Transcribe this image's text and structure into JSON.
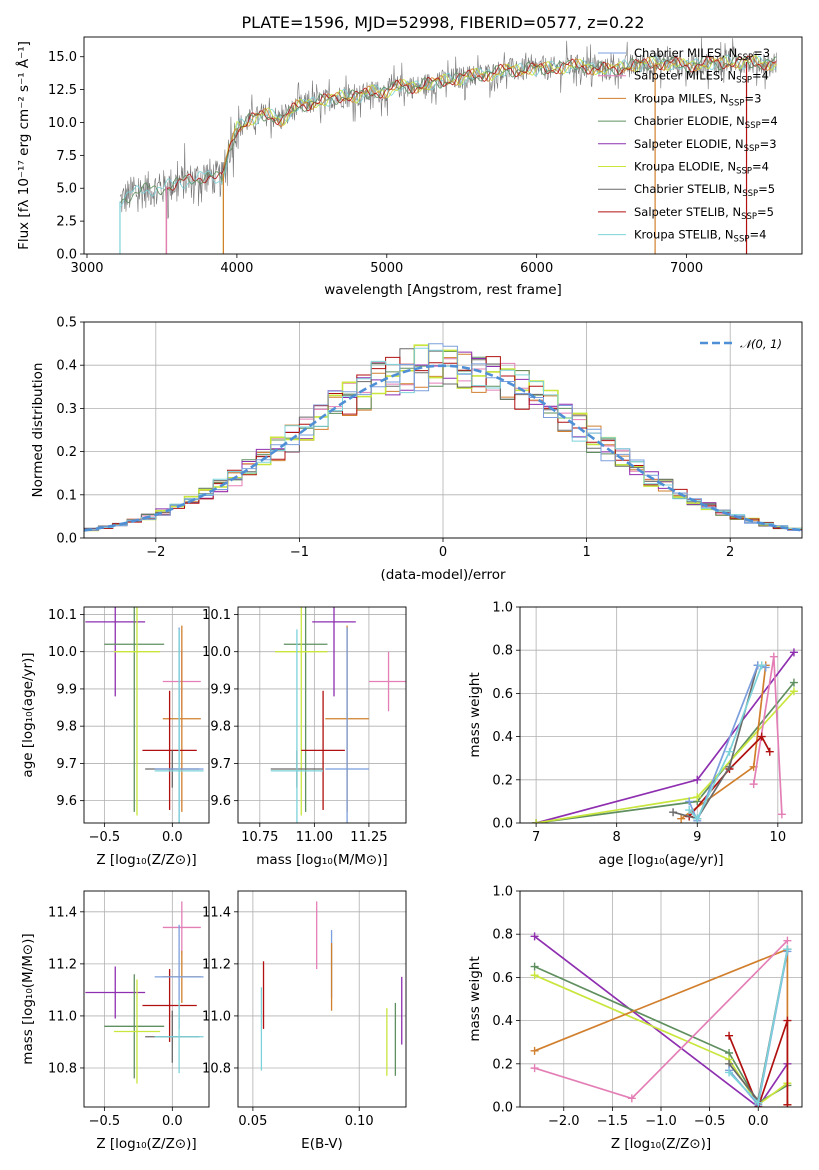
{
  "title": "PLATE=1596, MJD=52998, FIBERID=0577, z=0.22",
  "colors": {
    "chabrier_miles": "#7b9fdc",
    "salpeter_miles": "#e47fb6",
    "kroupa_miles": "#d17f2d",
    "chabrier_elodie": "#5f8f5f",
    "salpeter_elodie": "#8e2fb0",
    "kroupa_elodie": "#c8e63c",
    "chabrier_stelib": "#6a6a6a",
    "salpeter_stelib": "#b01010",
    "kroupa_stelib": "#7dd3da",
    "normal_curve": "#4f8fd6"
  },
  "chart_data": [
    {
      "type": "line",
      "xlabel": "wavelength [Angstrom, rest frame]",
      "ylabel": "Flux [fλ 10⁻¹⁷ erg cm⁻² s⁻¹ Å⁻¹]",
      "xlim": [
        2980,
        7770
      ],
      "ylim": [
        0,
        16.5
      ],
      "xticks": [
        "3000",
        "4000",
        "5000",
        "6000",
        "7000"
      ],
      "yticks": [
        "0.0",
        "2.5",
        "5.0",
        "7.5",
        "10.0",
        "12.5",
        "15.0"
      ],
      "grid": false,
      "legend_placement": "upper-right",
      "legend": [
        {
          "label": "Chabrier MILES, N",
          "sub": "SSP",
          "suffix": "=3",
          "color": "chabrier_miles"
        },
        {
          "label": "Salpeter MILES, N",
          "sub": "SSP",
          "suffix": "=4",
          "color": "salpeter_miles"
        },
        {
          "label": "Kroupa MILES, N",
          "sub": "SSP",
          "suffix": "=3",
          "color": "kroupa_miles"
        },
        {
          "label": "Chabrier ELODIE, N",
          "sub": "SSP",
          "suffix": "=4",
          "color": "chabrier_elodie"
        },
        {
          "label": "Salpeter ELODIE, N",
          "sub": "SSP",
          "suffix": "=3",
          "color": "salpeter_elodie"
        },
        {
          "label": "Kroupa ELODIE, N",
          "sub": "SSP",
          "suffix": "=4",
          "color": "kroupa_elodie"
        },
        {
          "label": "Chabrier STELIB, N",
          "sub": "SSP",
          "suffix": "=5",
          "color": "chabrier_stelib"
        },
        {
          "label": "Salpeter STELIB, N",
          "sub": "SSP",
          "suffix": "=5",
          "color": "salpeter_stelib"
        },
        {
          "label": "Kroupa STELIB, N",
          "sub": "SSP",
          "suffix": "=4",
          "color": "kroupa_stelib"
        }
      ],
      "model_starts": [
        {
          "color": "kroupa_stelib",
          "x": 3220
        },
        {
          "color": "salpeter_stelib",
          "x": 3530
        },
        {
          "color": "kroupa_elodie",
          "x": 3910
        },
        {
          "color": "kroupa_miles",
          "x": 3910
        },
        {
          "color": "salpeter_miles",
          "x": 3530
        }
      ],
      "model_ends": [
        {
          "color": "kroupa_miles",
          "x": 6790
        },
        {
          "color": "salpeter_stelib",
          "x": 7400
        }
      ],
      "continuum": [
        [
          3220,
          4.0
        ],
        [
          3300,
          4.6
        ],
        [
          3400,
          4.9
        ],
        [
          3500,
          5.0
        ],
        [
          3600,
          5.4
        ],
        [
          3700,
          5.6
        ],
        [
          3800,
          6.0
        ],
        [
          3900,
          5.6
        ],
        [
          3950,
          8.0
        ],
        [
          4000,
          9.6
        ],
        [
          4100,
          10.3
        ],
        [
          4200,
          10.6
        ],
        [
          4300,
          10.2
        ],
        [
          4400,
          11.2
        ],
        [
          4500,
          11.5
        ],
        [
          4600,
          11.7
        ],
        [
          4700,
          12.0
        ],
        [
          4800,
          12.0
        ],
        [
          4900,
          12.3
        ],
        [
          5000,
          12.4
        ],
        [
          5100,
          12.8
        ],
        [
          5200,
          12.7
        ],
        [
          5300,
          13.0
        ],
        [
          5400,
          13.2
        ],
        [
          5500,
          13.4
        ],
        [
          5600,
          13.6
        ],
        [
          5700,
          13.7
        ],
        [
          5800,
          14.0
        ],
        [
          5900,
          14.0
        ],
        [
          6000,
          14.1
        ],
        [
          6100,
          14.1
        ],
        [
          6200,
          14.3
        ],
        [
          6300,
          14.3
        ],
        [
          6400,
          14.1
        ],
        [
          6500,
          14.0
        ],
        [
          6600,
          14.3
        ],
        [
          6700,
          14.4
        ],
        [
          6800,
          14.5
        ],
        [
          6900,
          14.5
        ],
        [
          7000,
          14.3
        ],
        [
          7100,
          14.5
        ],
        [
          7200,
          14.5
        ],
        [
          7300,
          14.6
        ],
        [
          7400,
          14.6
        ],
        [
          7500,
          14.5
        ],
        [
          7600,
          14.5
        ]
      ]
    },
    {
      "type": "histogram",
      "xlabel": "(data-model)/error",
      "ylabel": "Normed distribution",
      "xlim": [
        -2.5,
        2.5
      ],
      "ylim": [
        0,
        0.5
      ],
      "xticks": [
        "−2",
        "−1",
        "0",
        "1",
        "2"
      ],
      "yticks": [
        "0.0",
        "0.1",
        "0.2",
        "0.3",
        "0.4",
        "0.5"
      ],
      "grid": true,
      "legend_placement": "upper-right",
      "legend_label": "𝒩(0, 1)",
      "bin_width": 0.1,
      "bin_start": -2.5,
      "normal_curve": {
        "mean": 0,
        "sigma": 1
      }
    },
    {
      "type": "scatter-errorbar",
      "xlabel": "Z [log₁₀(Z/Z⊙)]",
      "ylabel": "age  [log₁₀(age/yr)]",
      "xlim": [
        -0.65,
        0.27
      ],
      "ylim": [
        9.54,
        10.12
      ],
      "xticks": [
        "−0.5",
        "0.0"
      ],
      "yticks": [
        "9.6",
        "9.7",
        "9.8",
        "9.9",
        "10.0",
        "10.1"
      ],
      "grid": true,
      "points": [
        {
          "color": "salpeter_elodie",
          "x": -0.42,
          "xerr": 0.22,
          "y": 10.08,
          "yerr": 0.2
        },
        {
          "color": "chabrier_elodie",
          "x": -0.28,
          "xerr": 0.22,
          "y": 10.02,
          "yerr": 0.45
        },
        {
          "color": "kroupa_elodie",
          "x": -0.26,
          "xerr": 0.17,
          "y": 10.0,
          "yerr": 0.44
        },
        {
          "color": "salpeter_miles",
          "x": 0.07,
          "xerr": 0.14,
          "y": 9.92,
          "yerr": 0.08
        },
        {
          "color": "kroupa_miles",
          "x": 0.07,
          "xerr": 0.14,
          "y": 9.82,
          "yerr": 0.25
        },
        {
          "color": "salpeter_stelib",
          "x": -0.02,
          "xerr": 0.2,
          "y": 9.735,
          "yerr": 0.16
        },
        {
          "color": "chabrier_stelib",
          "x": 0.0,
          "xerr": 0.2,
          "y": 9.685,
          "yerr": 0.05
        },
        {
          "color": "chabrier_miles",
          "x": 0.05,
          "xerr": 0.18,
          "y": 9.685,
          "yerr": 0.38
        },
        {
          "color": "kroupa_stelib",
          "x": 0.05,
          "xerr": 0.18,
          "y": 9.68,
          "yerr": 0.38
        }
      ]
    },
    {
      "type": "scatter-errorbar",
      "xlabel": "mass [log₁₀(M/M⊙)]",
      "ylabel": "",
      "xlim": [
        10.65,
        11.42
      ],
      "ylim": [
        9.54,
        10.12
      ],
      "xticks": [
        "10.75",
        "11.00",
        "11.25"
      ],
      "yticks": [
        "9.6",
        "9.7",
        "9.8",
        "9.9",
        "10.0",
        "10.1"
      ],
      "grid": true,
      "points": [
        {
          "color": "salpeter_elodie",
          "x": 11.09,
          "xerr": 0.1,
          "y": 10.08,
          "yerr": 0.2
        },
        {
          "color": "chabrier_elodie",
          "x": 10.96,
          "xerr": 0.1,
          "y": 10.02,
          "yerr": 0.45
        },
        {
          "color": "kroupa_elodie",
          "x": 10.94,
          "xerr": 0.12,
          "y": 10.0,
          "yerr": 0.44
        },
        {
          "color": "salpeter_miles",
          "x": 11.34,
          "xerr": 0.09,
          "y": 9.92,
          "yerr": 0.08
        },
        {
          "color": "kroupa_miles",
          "x": 11.15,
          "xerr": 0.1,
          "y": 9.82,
          "yerr": 0.25
        },
        {
          "color": "salpeter_stelib",
          "x": 11.04,
          "xerr": 0.1,
          "y": 9.735,
          "yerr": 0.16
        },
        {
          "color": "chabrier_stelib",
          "x": 10.92,
          "xerr": 0.12,
          "y": 9.685,
          "yerr": 0.05
        },
        {
          "color": "chabrier_miles",
          "x": 11.15,
          "xerr": 0.1,
          "y": 9.685,
          "yerr": 0.38
        },
        {
          "color": "kroupa_stelib",
          "x": 10.92,
          "xerr": 0.12,
          "y": 9.68,
          "yerr": 0.38
        }
      ]
    },
    {
      "type": "line",
      "xlabel": "age  [log₁₀(age/yr)]",
      "ylabel": "mass weight",
      "xlim": [
        6.8,
        10.3
      ],
      "ylim": [
        0,
        1.0
      ],
      "xticks": [
        "7",
        "8",
        "9",
        "10"
      ],
      "yticks": [
        "0.0",
        "0.2",
        "0.4",
        "0.6",
        "0.8",
        "1.0"
      ],
      "grid": true,
      "series": [
        {
          "color": "salpeter_elodie",
          "points": [
            [
              7.0,
              0.0
            ],
            [
              9.0,
              0.2
            ],
            [
              10.2,
              0.79
            ]
          ]
        },
        {
          "color": "chabrier_elodie",
          "points": [
            [
              7.0,
              0.0
            ],
            [
              9.0,
              0.1
            ],
            [
              10.2,
              0.65
            ]
          ]
        },
        {
          "color": "kroupa_elodie",
          "points": [
            [
              7.0,
              0.0
            ],
            [
              9.0,
              0.12
            ],
            [
              10.2,
              0.61
            ]
          ]
        },
        {
          "color": "kroupa_miles",
          "points": [
            [
              8.8,
              0.02
            ],
            [
              9.7,
              0.26
            ],
            [
              9.85,
              0.73
            ]
          ]
        },
        {
          "color": "salpeter_miles",
          "points": [
            [
              9.7,
              0.18
            ],
            [
              9.95,
              0.77
            ],
            [
              10.05,
              0.04
            ]
          ]
        },
        {
          "color": "salpeter_stelib",
          "points": [
            [
              8.9,
              0.03
            ],
            [
              9.4,
              0.25
            ],
            [
              9.8,
              0.4
            ],
            [
              9.9,
              0.33
            ]
          ]
        },
        {
          "color": "chabrier_stelib",
          "points": [
            [
              8.7,
              0.05
            ],
            [
              9.0,
              0.02
            ],
            [
              9.4,
              0.26
            ],
            [
              9.75,
              0.73
            ]
          ]
        },
        {
          "color": "chabrier_miles",
          "points": [
            [
              8.9,
              0.1
            ],
            [
              9.0,
              0.01
            ],
            [
              9.75,
              0.73
            ],
            [
              9.85,
              0.72
            ]
          ]
        },
        {
          "color": "kroupa_stelib",
          "points": [
            [
              8.9,
              0.06
            ],
            [
              9.0,
              0.02
            ],
            [
              9.4,
              0.33
            ],
            [
              9.8,
              0.73
            ]
          ]
        }
      ]
    },
    {
      "type": "scatter-errorbar",
      "xlabel": "Z [log₁₀(Z/Z⊙)]",
      "ylabel": "mass [log₁₀(M/M⊙)]",
      "xlim": [
        -0.65,
        0.27
      ],
      "ylim": [
        10.65,
        11.48
      ],
      "xticks": [
        "−0.5",
        "0.0"
      ],
      "yticks": [
        "10.8",
        "11.0",
        "11.2",
        "11.4"
      ],
      "grid": true,
      "points": [
        {
          "color": "salpeter_elodie",
          "x": -0.42,
          "xerr": 0.22,
          "y": 11.09,
          "yerr": 0.1
        },
        {
          "color": "chabrier_elodie",
          "x": -0.28,
          "xerr": 0.22,
          "y": 10.96,
          "yerr": 0.2
        },
        {
          "color": "kroupa_elodie",
          "x": -0.26,
          "xerr": 0.17,
          "y": 10.94,
          "yerr": 0.2
        },
        {
          "color": "salpeter_miles",
          "x": 0.07,
          "xerr": 0.14,
          "y": 11.34,
          "yerr": 0.1
        },
        {
          "color": "kroupa_miles",
          "x": 0.07,
          "xerr": 0.14,
          "y": 11.15,
          "yerr": 0.1
        },
        {
          "color": "salpeter_stelib",
          "x": -0.02,
          "xerr": 0.2,
          "y": 11.04,
          "yerr": 0.14
        },
        {
          "color": "chabrier_stelib",
          "x": 0.0,
          "xerr": 0.2,
          "y": 10.92,
          "yerr": 0.1
        },
        {
          "color": "chabrier_miles",
          "x": 0.05,
          "xerr": 0.18,
          "y": 11.15,
          "yerr": 0.2
        },
        {
          "color": "kroupa_stelib",
          "x": 0.05,
          "xerr": 0.18,
          "y": 10.92,
          "yerr": 0.14
        }
      ]
    },
    {
      "type": "scatter-errorbar",
      "xlabel": "E(B-V)",
      "ylabel": "",
      "xlim": [
        0.043,
        0.122
      ],
      "ylim": [
        10.65,
        11.48
      ],
      "xticks": [
        "0.05",
        "0.10"
      ],
      "yticks": [
        "10.8",
        "11.0",
        "11.2",
        "11.4"
      ],
      "grid": true,
      "points": [
        {
          "color": "salpeter_stelib",
          "x": 0.055,
          "y": 11.08,
          "yerr": 0.13
        },
        {
          "color": "kroupa_stelib",
          "x": 0.054,
          "y": 10.95,
          "yerr": 0.16
        },
        {
          "color": "salpeter_miles",
          "x": 0.08,
          "y": 11.31,
          "yerr": 0.13
        },
        {
          "color": "chabrier_miles",
          "x": 0.087,
          "y": 11.2,
          "yerr": 0.13
        },
        {
          "color": "kroupa_miles",
          "x": 0.087,
          "y": 11.15,
          "yerr": 0.13
        },
        {
          "color": "kroupa_elodie",
          "x": 0.113,
          "y": 10.9,
          "yerr": 0.13
        },
        {
          "color": "chabrier_elodie",
          "x": 0.117,
          "y": 10.91,
          "yerr": 0.14
        },
        {
          "color": "salpeter_elodie",
          "x": 0.12,
          "y": 11.02,
          "yerr": 0.13
        }
      ]
    },
    {
      "type": "line",
      "xlabel": "Z [log₁₀(Z/Z⊙)]",
      "ylabel": "mass weight",
      "xlim": [
        -2.45,
        0.45
      ],
      "ylim": [
        0,
        1.0
      ],
      "xticks": [
        "−2.0",
        "−1.5",
        "−1.0",
        "−0.5",
        "0.0"
      ],
      "yticks": [
        "0.0",
        "0.2",
        "0.4",
        "0.6",
        "0.8",
        "1.0"
      ],
      "grid": true,
      "series": [
        {
          "color": "salpeter_elodie",
          "points": [
            [
              -2.3,
              0.79
            ],
            [
              0.0,
              0.0
            ],
            [
              0.3,
              0.2
            ]
          ]
        },
        {
          "color": "chabrier_elodie",
          "points": [
            [
              -2.3,
              0.65
            ],
            [
              -0.3,
              0.25
            ],
            [
              0.0,
              0.02
            ],
            [
              0.3,
              0.1
            ]
          ]
        },
        {
          "color": "kroupa_elodie",
          "points": [
            [
              -2.3,
              0.61
            ],
            [
              -0.3,
              0.22
            ],
            [
              0.0,
              0.01
            ],
            [
              0.3,
              0.11
            ]
          ]
        },
        {
          "color": "kroupa_miles",
          "points": [
            [
              -2.3,
              0.26
            ],
            [
              0.3,
              0.73
            ],
            [
              0.3,
              0.01
            ]
          ]
        },
        {
          "color": "salpeter_miles",
          "points": [
            [
              -2.3,
              0.18
            ],
            [
              -1.3,
              0.04
            ],
            [
              0.3,
              0.77
            ]
          ]
        },
        {
          "color": "salpeter_stelib",
          "points": [
            [
              -0.3,
              0.33
            ],
            [
              0.0,
              0.0
            ],
            [
              0.3,
              0.4
            ],
            [
              0.3,
              0.01
            ]
          ]
        },
        {
          "color": "chabrier_stelib",
          "points": [
            [
              -0.3,
              0.2
            ],
            [
              0.0,
              0.03
            ],
            [
              0.3,
              0.73
            ]
          ]
        },
        {
          "color": "chabrier_miles",
          "points": [
            [
              -0.3,
              0.17
            ],
            [
              0.0,
              0.01
            ],
            [
              0.3,
              0.72
            ]
          ]
        },
        {
          "color": "kroupa_stelib",
          "points": [
            [
              -0.3,
              0.16
            ],
            [
              0.0,
              0.02
            ],
            [
              0.3,
              0.73
            ]
          ]
        }
      ]
    }
  ]
}
